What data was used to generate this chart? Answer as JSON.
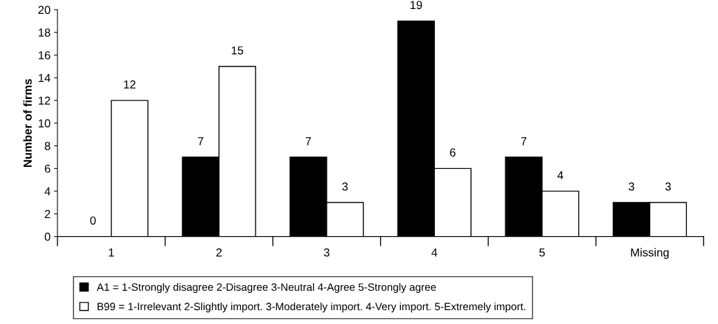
{
  "chart_data": {
    "type": "bar",
    "ylabel": "Number of firms",
    "categories": [
      "1",
      "2",
      "3",
      "4",
      "5",
      "Missing"
    ],
    "series": [
      {
        "name": "A1 = 1-Strongly disagree 2-Disagree 3-Neutral 4-Agree 5-Strongly agree",
        "color": "#000000",
        "values": [
          0,
          7,
          7,
          19,
          7,
          3
        ]
      },
      {
        "name": "B99 = 1-Irrelevant 2-Slightly import. 3-Moderately import. 4-Very import. 5-Extremely import.",
        "color": "#ffffff",
        "values": [
          12,
          15,
          3,
          6,
          4,
          3
        ]
      }
    ],
    "ylim": [
      0,
      20
    ],
    "yticks": [
      0,
      2,
      4,
      6,
      8,
      10,
      12,
      14,
      16,
      18,
      20
    ],
    "data_labels": true,
    "grid": false,
    "legend": "bottom"
  }
}
